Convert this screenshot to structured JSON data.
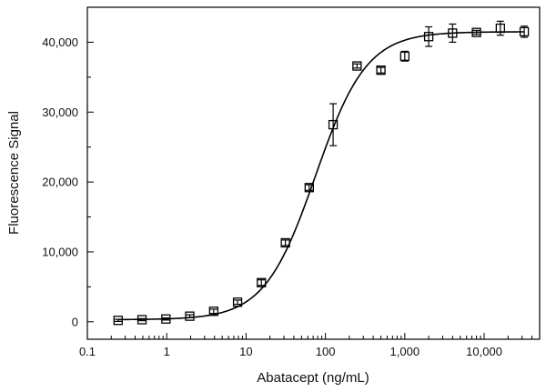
{
  "chart_data": {
    "type": "scatter",
    "title": "",
    "xlabel": "Abatacept (ng/mL)",
    "ylabel": "Fluorescence Signal",
    "x_scale": "log",
    "xlim": [
      0.1,
      50000
    ],
    "ylim": [
      -2500,
      45000
    ],
    "x_ticks": [
      0.1,
      1,
      10,
      100,
      1000,
      10000
    ],
    "x_tick_labels": [
      "0.1",
      "1",
      "10",
      "100",
      "1,000",
      "10,000"
    ],
    "y_ticks": [
      0,
      10000,
      20000,
      30000,
      40000
    ],
    "y_tick_labels": [
      "0",
      "10,000",
      "20,000",
      "30,000",
      "40,000"
    ],
    "grid": false,
    "legend": "none",
    "marker": "open-square",
    "series": [
      {
        "x": [
          0.244,
          0.488,
          0.977,
          1.95,
          3.91,
          7.81,
          15.6,
          31.3,
          62.5,
          125,
          250,
          500,
          1000,
          2000,
          4000,
          8000,
          16000,
          32000
        ],
        "y": [
          200,
          300,
          400,
          800,
          1500,
          2800,
          5600,
          11300,
          19200,
          28200,
          36600,
          36000,
          38000,
          40800,
          41300,
          41400,
          42000,
          41500
        ],
        "error": [
          150,
          150,
          150,
          200,
          300,
          300,
          400,
          400,
          400,
          3000,
          300,
          400,
          700,
          1400,
          1300,
          300,
          1000,
          800
        ]
      }
    ],
    "fit_curve": {
      "type": "4PL",
      "bottom": 300,
      "top": 41500,
      "ec50": 75,
      "hill": 1.35
    }
  }
}
